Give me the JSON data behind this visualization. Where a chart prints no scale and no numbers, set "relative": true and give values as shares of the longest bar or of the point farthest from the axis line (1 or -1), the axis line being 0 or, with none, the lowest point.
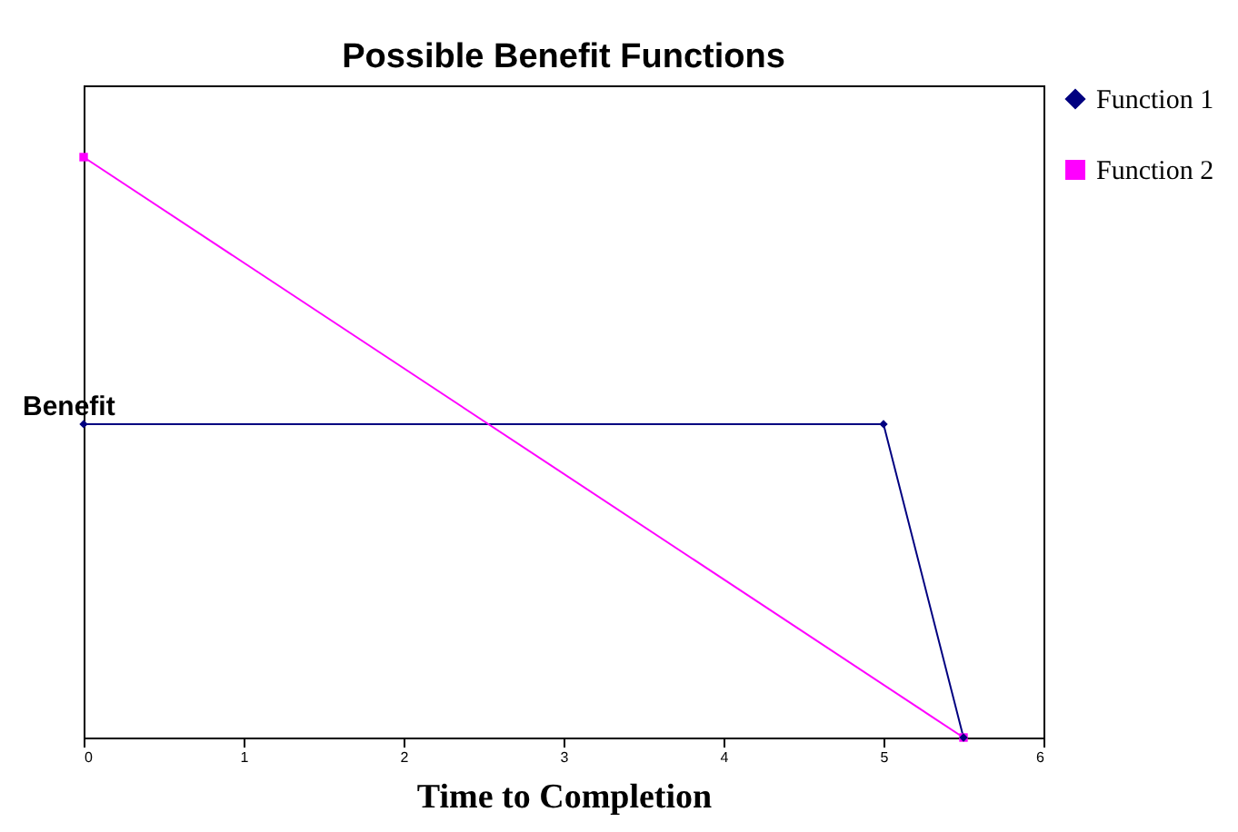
{
  "chart_data": {
    "type": "line",
    "title": "Possible Benefit Functions",
    "xlabel": "Time to Completion",
    "ylabel": "Benefit",
    "relative": true,
    "xlim": [
      0,
      6
    ],
    "xticks": [
      0,
      1,
      2,
      3,
      4,
      5,
      6
    ],
    "grid": false,
    "legend": "right",
    "series": [
      {
        "name": "Function 1",
        "color": "#000080",
        "marker": "diamond",
        "x": [
          0,
          5,
          5.5
        ],
        "values": [
          0.54,
          0.54,
          0
        ]
      },
      {
        "name": "Function 2",
        "color": "#ff00ff",
        "marker": "square",
        "x": [
          0,
          5.5
        ],
        "values": [
          1,
          0
        ]
      }
    ]
  }
}
